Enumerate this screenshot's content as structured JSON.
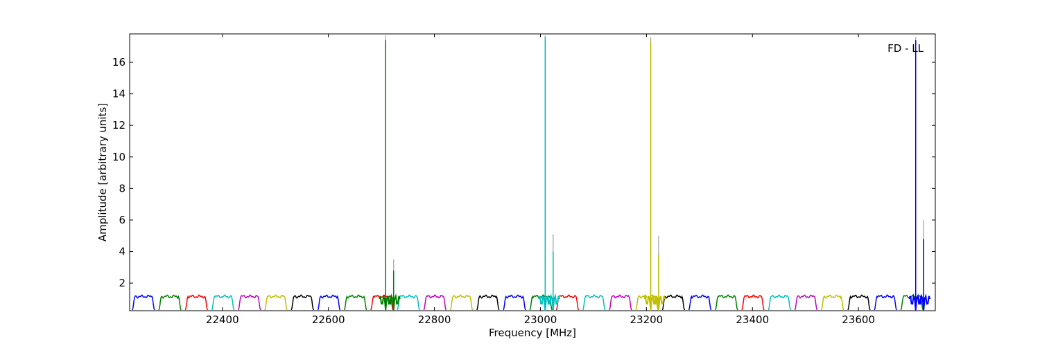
{
  "chart_data": {
    "type": "line",
    "title": "",
    "annotation": "FD - LL",
    "xlabel": "Frequency [MHz]",
    "ylabel": "Amplitude [arbitrary units]",
    "xlim": [
      22225,
      23745
    ],
    "ylim": [
      0.25,
      17.8
    ],
    "xticks": [
      22400,
      22600,
      22800,
      23000,
      23200,
      23400,
      23600
    ],
    "yticks": [
      2,
      4,
      6,
      8,
      10,
      12,
      14,
      16
    ],
    "grid": false,
    "legend": "none",
    "band": {
      "description": "repeating bandpass segments, ~42 MHz wide, spacing ~50 MHz",
      "start": 22230,
      "width": 42,
      "overlap_pitch": 50,
      "level": 1.15,
      "floor": 0.3,
      "colors": [
        "#0000ff",
        "#007f00",
        "#ff0000",
        "#00bfbf",
        "#bf00bf",
        "#bfbf00",
        "#000000"
      ]
    },
    "spikes": [
      {
        "x": 22708,
        "y": 17.4,
        "y_gray": 17.7,
        "color": "#007f00"
      },
      {
        "x": 22723,
        "y": 2.8,
        "y_gray": 3.5,
        "color": "#007f00"
      },
      {
        "x": 23009,
        "y": 17.6,
        "y_gray": 17.7,
        "color": "#00bfbf"
      },
      {
        "x": 23024,
        "y": 4.0,
        "y_gray": 5.1,
        "color": "#00bfbf"
      },
      {
        "x": 23208,
        "y": 17.3,
        "y_gray": 17.6,
        "color": "#bfbf00"
      },
      {
        "x": 23223,
        "y": 3.8,
        "y_gray": 5.0,
        "color": "#bfbf00"
      },
      {
        "x": 23708,
        "y": 17.4,
        "y_gray": 17.6,
        "color": "#0000ff"
      },
      {
        "x": 23723,
        "y": 4.8,
        "y_gray": 6.0,
        "color": "#0000ff"
      }
    ]
  }
}
